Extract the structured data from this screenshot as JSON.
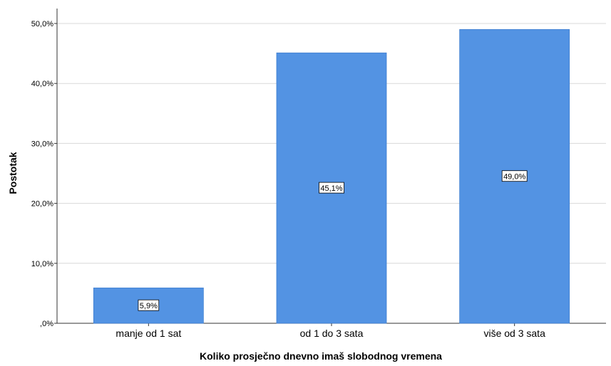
{
  "chart_data": {
    "type": "bar",
    "categories": [
      "manje od 1 sat",
      "od 1 do 3 sata",
      "više od 3 sata"
    ],
    "values": [
      5.9,
      45.1,
      49.0
    ],
    "data_labels": [
      "5,9%",
      "45,1%",
      "49,0%"
    ],
    "xlabel": "Koliko prosječno dnevno imaš slobodnog vremena",
    "ylabel": "Postotak",
    "ylim": [
      0,
      50
    ],
    "yticks": [
      0,
      10,
      20,
      30,
      40,
      50
    ],
    "ytick_labels": [
      ",0%",
      "10,0%",
      "20,0%",
      "30,0%",
      "40,0%",
      "50,0%"
    ],
    "grid": true,
    "bar_color": "#5393e3",
    "bar_edge_color": "#3f7fd0"
  }
}
